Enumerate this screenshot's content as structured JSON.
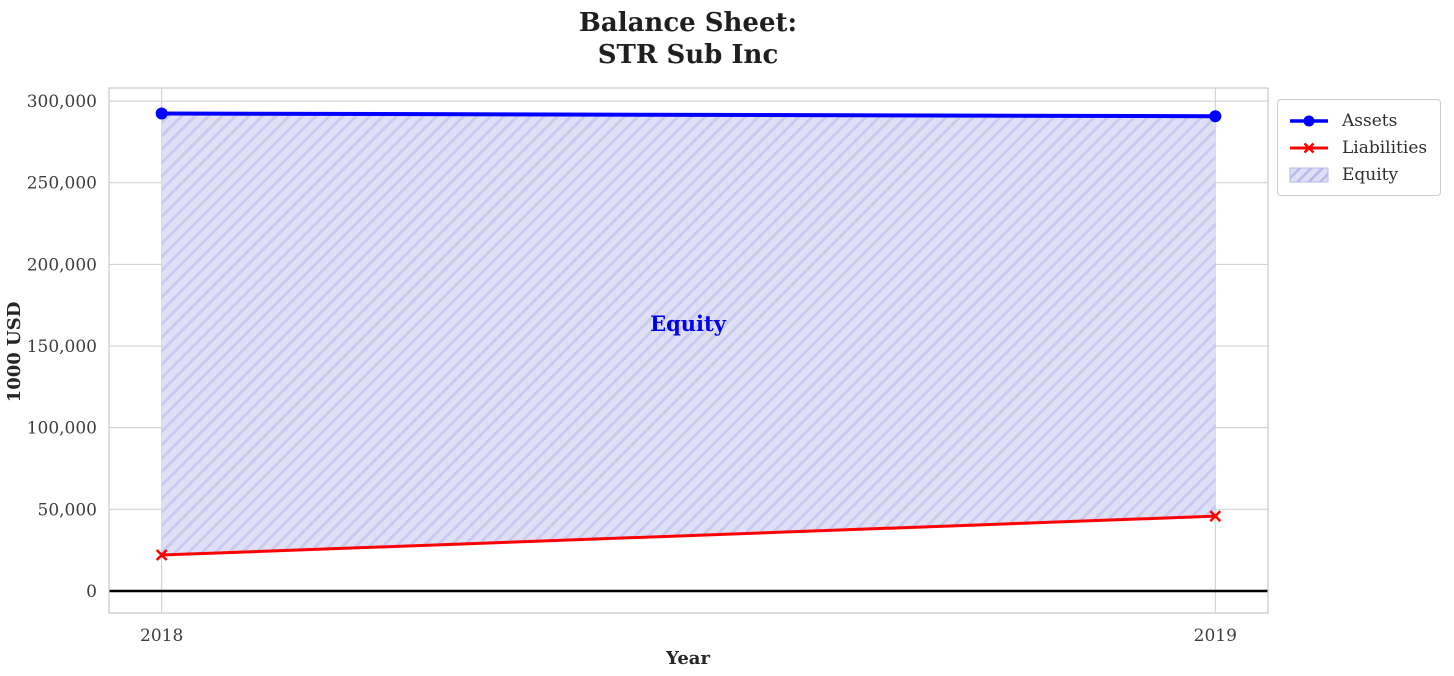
{
  "title": {
    "line1": "Balance Sheet:",
    "line2": "STR Sub Inc"
  },
  "annotation": {
    "equity_label": "Equity"
  },
  "legend": {
    "items": [
      {
        "label": "Assets",
        "marker": "circle-on-line",
        "color": "#0000ff"
      },
      {
        "label": "Liabilities",
        "marker": "x-on-line",
        "color": "#ff0000"
      },
      {
        "label": "Equity",
        "marker": "hatched-patch",
        "color": "#cacaee"
      }
    ]
  },
  "colors": {
    "assets": "#0000ff",
    "liabilities": "#ff0000",
    "equity_fill": "#dfdff5",
    "equity_hatch": "#cacaee",
    "equity_text": "#0000ee",
    "grid": "#cccccc",
    "spine": "#c8c8c8",
    "baseline": "#000000",
    "tick_text": "#3d3d3d"
  },
  "chart_data": {
    "type": "area",
    "title": "Balance Sheet: STR Sub Inc",
    "xlabel": "Year",
    "ylabel": "1000 USD",
    "x": [
      2018,
      2019
    ],
    "series": [
      {
        "name": "Assets",
        "kind": "line",
        "marker": "circle",
        "color": "#0000ff",
        "values": [
          292400,
          290700
        ]
      },
      {
        "name": "Liabilities",
        "kind": "line",
        "marker": "x",
        "color": "#ff0000",
        "values": [
          22000,
          45800
        ]
      }
    ],
    "area_between": {
      "name": "Equity",
      "upper": "Assets",
      "lower": "Liabilities",
      "derived_values": [
        270400,
        244900
      ],
      "hatch": "//"
    },
    "baseline": 0,
    "grid": true,
    "legend_position": "outside-upper-right",
    "xlim": [
      2017.95,
      2019.05
    ],
    "ylim": [
      -13500,
      308000
    ],
    "x_ticks": [
      {
        "value": 2018,
        "label": "2018"
      },
      {
        "value": 2019,
        "label": "2019"
      }
    ],
    "y_ticks": [
      {
        "value": 0,
        "label": "0"
      },
      {
        "value": 50000,
        "label": "50,000"
      },
      {
        "value": 100000,
        "label": "100,000"
      },
      {
        "value": 150000,
        "label": "150,000"
      },
      {
        "value": 200000,
        "label": "200,000"
      },
      {
        "value": 250000,
        "label": "250,000"
      },
      {
        "value": 300000,
        "label": "300,000"
      }
    ]
  }
}
